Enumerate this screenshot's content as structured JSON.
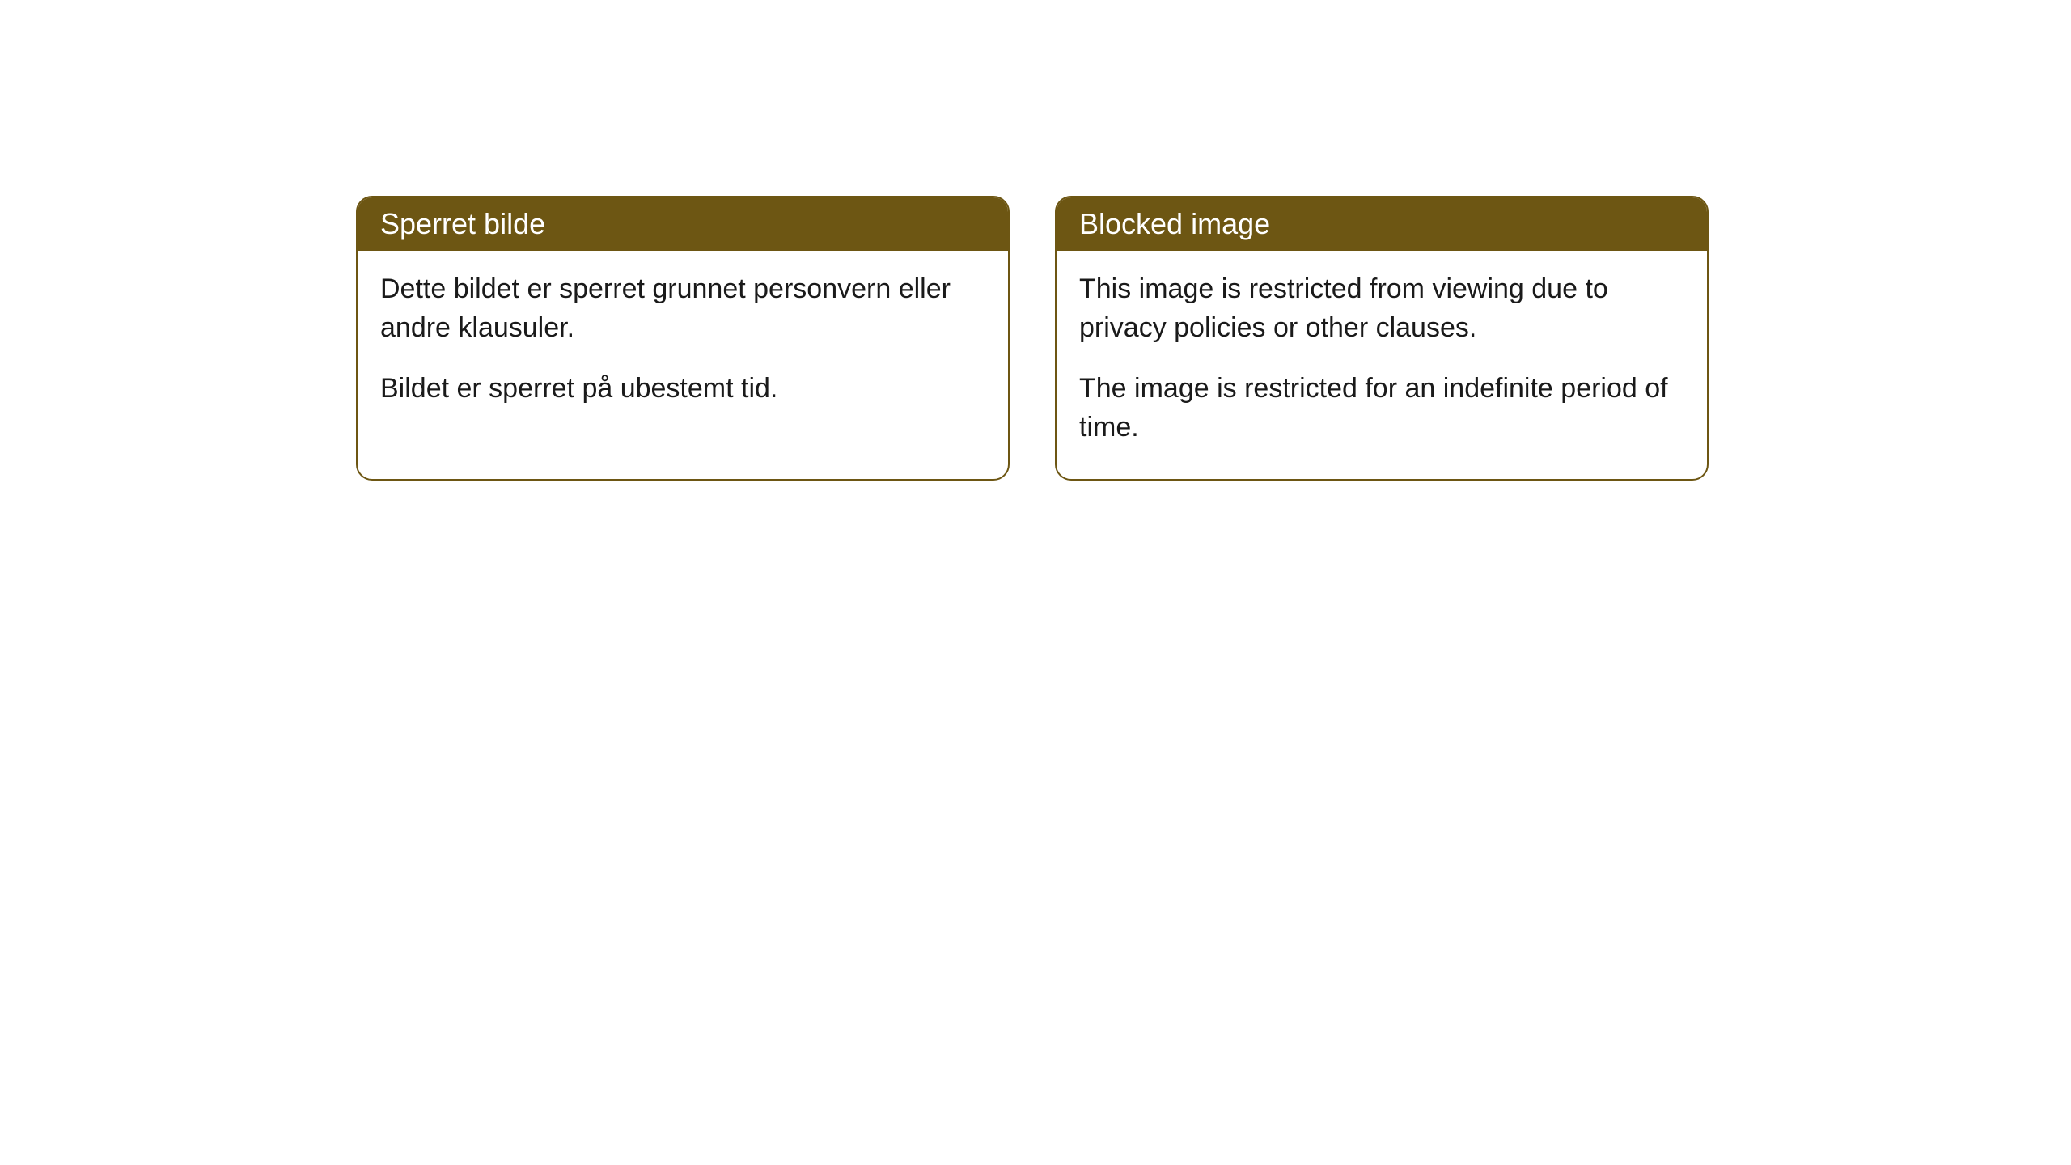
{
  "cards": [
    {
      "title": "Sperret bilde",
      "paragraph1": "Dette bildet er sperret grunnet personvern eller andre klausuler.",
      "paragraph2": "Bildet er sperret på ubestemt tid."
    },
    {
      "title": "Blocked image",
      "paragraph1": "This image is restricted from viewing due to privacy policies or other clauses.",
      "paragraph2": "The image is restricted for an indefinite period of time."
    }
  ],
  "styling": {
    "header_background_color": "#6d5613",
    "header_text_color": "#ffffff",
    "border_color": "#6d5613",
    "body_background_color": "#ffffff",
    "body_text_color": "#1a1a1a",
    "border_radius": "20px",
    "title_fontsize": 36,
    "body_fontsize": 34
  }
}
